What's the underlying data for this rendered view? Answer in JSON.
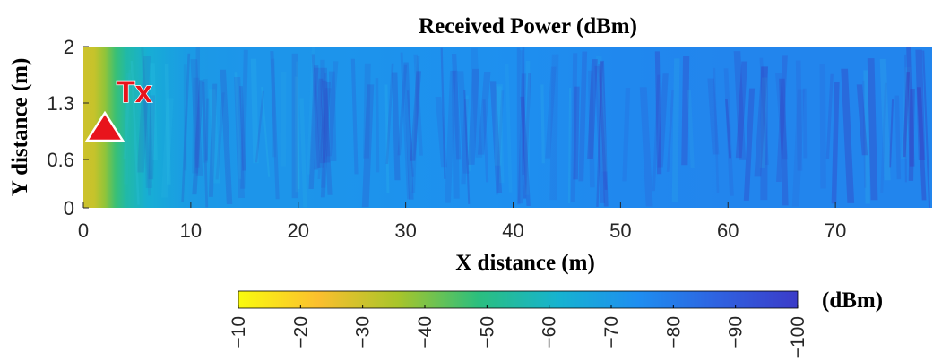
{
  "chart_data": {
    "type": "heatmap",
    "title": "Received Power (dBm)",
    "xlabel": "X distance (m)",
    "ylabel": "Y distance (m)",
    "xlim": [
      0,
      79
    ],
    "ylim": [
      0,
      2
    ],
    "x_ticks": [
      0,
      10,
      20,
      30,
      40,
      50,
      60,
      70
    ],
    "y_ticks": [
      0,
      0.6,
      1.3,
      2
    ],
    "y_tick_labels": [
      "0",
      "0.6",
      "1.3",
      "2"
    ],
    "x_tick_labels": [
      "0",
      "10",
      "20",
      "30",
      "40",
      "50",
      "60",
      "70"
    ],
    "annotation": {
      "label": "Tx",
      "x": 2,
      "y": 0.95,
      "color": "#e8141c"
    },
    "colorbar": {
      "label": "(dBm)",
      "range": [
        -10,
        -100
      ],
      "ticks": [
        -10,
        -20,
        -30,
        -40,
        -50,
        -60,
        -70,
        -80,
        -90,
        -100
      ],
      "tick_labels": [
        "−10",
        "−20",
        "−30",
        "−40",
        "−50",
        "−60",
        "−70",
        "−80",
        "−90",
        "−100"
      ],
      "colormap": [
        "#f9fb0e",
        "#fbbf2e",
        "#a8c52a",
        "#2bbf7e",
        "#16b3d0",
        "#1e8ef0",
        "#2f62e0",
        "#3b3bc8"
      ]
    },
    "power_profile": {
      "x": [
        0,
        1,
        2,
        3,
        4,
        6,
        8,
        10,
        15,
        20,
        30,
        40,
        50,
        60,
        70,
        79
      ],
      "values": [
        -30,
        -31,
        -38,
        -47,
        -55,
        -63,
        -67,
        -70,
        -72,
        -72,
        -73,
        -74,
        -76,
        -77,
        -77,
        -77
      ]
    }
  }
}
